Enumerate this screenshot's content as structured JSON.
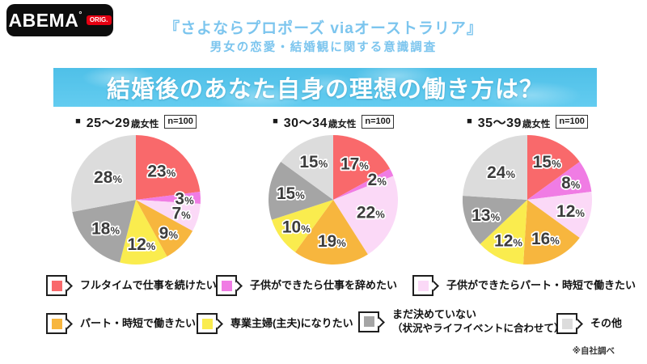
{
  "logo": {
    "brand": "ABEMA",
    "mark": "°",
    "badge": "ORIG."
  },
  "header": {
    "title": "『さよならプロポーズ viaオーストラリア』",
    "subtitle": "男女の恋愛・結婚観に関する意識調査",
    "title_color": "#7cc5ee"
  },
  "banner": {
    "text": "結婚後のあなた自身の理想の働き方は？"
  },
  "chart_data": {
    "type": "pie",
    "categories": [
      "フルタイムで仕事を続けたい",
      "子供ができたら仕事を辞めたい",
      "子供ができたらパート・時短で働きたい",
      "パート・時短で働きたい",
      "専業主婦(主夫)になりたい",
      "まだ決めていない（状況やライフイベントに合わせて）",
      "その他"
    ],
    "colors": [
      "#f9696b",
      "#f07ce4",
      "#fbd9f7",
      "#f7b63e",
      "#faec4e",
      "#a5a5a5",
      "#dcdcdc"
    ],
    "value_suffix": "%",
    "label_color": "#3c3c3c",
    "start_angle": "top",
    "direction": "clockwise",
    "charts": [
      {
        "marker": "■",
        "age": "25～29",
        "age_suffix": "歳女性",
        "n_label": "n=100",
        "values": [
          23,
          3,
          7,
          9,
          12,
          18,
          28
        ]
      },
      {
        "marker": "■",
        "age": "30～34",
        "age_suffix": "歳女性",
        "n_label": "n=100",
        "values": [
          17,
          2,
          22,
          19,
          10,
          15,
          15
        ]
      },
      {
        "marker": "■",
        "age": "35～39",
        "age_suffix": "歳女性",
        "n_label": "n=100",
        "values": [
          15,
          8,
          12,
          16,
          12,
          13,
          24
        ]
      }
    ]
  },
  "legend": {
    "items": [
      {
        "label": "フルタイムで仕事を続けたい",
        "color_index": 0
      },
      {
        "label": "子供ができたら仕事を辞めたい",
        "color_index": 1
      },
      {
        "label": "子供ができたらパート・時短で働きたい",
        "color_index": 2
      },
      {
        "label": "パート・時短で働きたい",
        "color_index": 3
      },
      {
        "label": "専業主婦(主夫)になりたい",
        "color_index": 4
      },
      {
        "label": "まだ決めていない",
        "label_line2": "（状況やライフイベントに合わせて）",
        "color_index": 5
      },
      {
        "label": "その他",
        "color_index": 6
      }
    ]
  },
  "footnote": "※自社調べ"
}
